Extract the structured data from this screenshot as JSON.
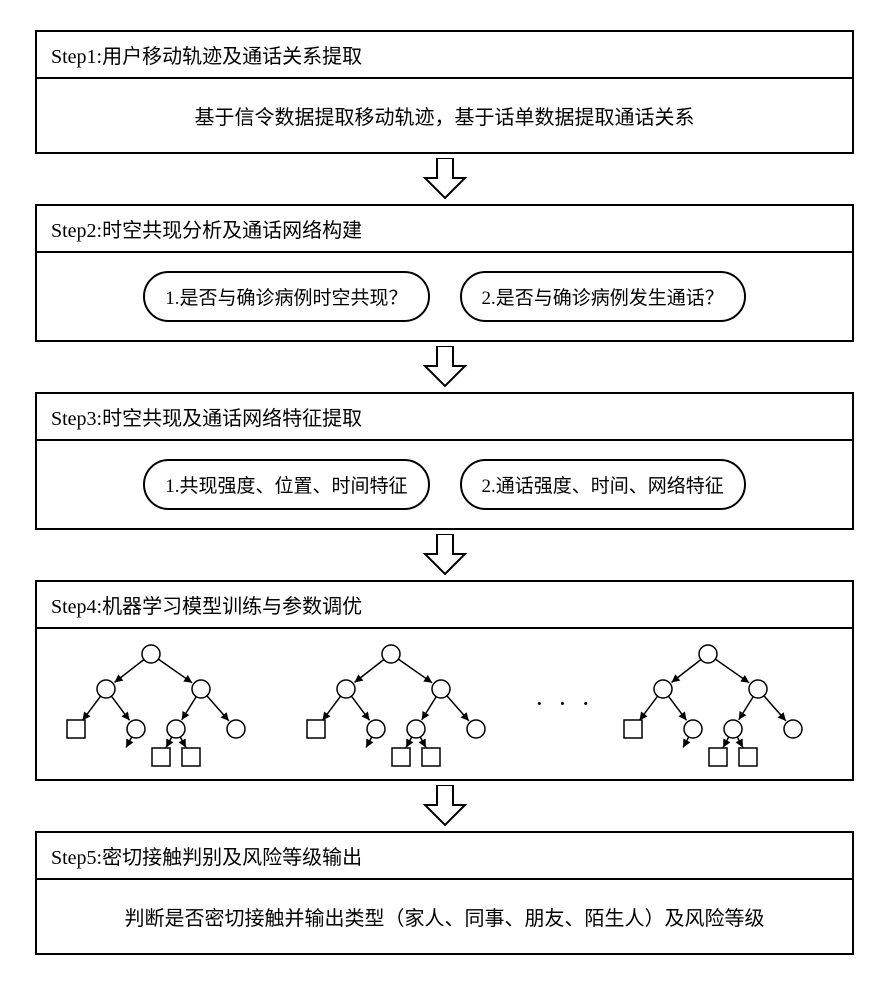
{
  "arrow": {
    "stroke": "#000000",
    "fill": "#ffffff",
    "stroke_width": 2
  },
  "tree": {
    "stroke": "#000000",
    "stroke_width": 1.5,
    "node_radius": 9,
    "leaf_size": 18,
    "fill": "#ffffff"
  },
  "steps": [
    {
      "title": "Step1:用户移动轨迹及通话关系提取",
      "content_text": "基于信令数据提取移动轨迹，基于话单数据提取通话关系"
    },
    {
      "title": "Step2:时空共现分析及通话网络构建",
      "pills": [
        "1.是否与确诊病例时空共现？",
        "2.是否与确诊病例发生通话？"
      ]
    },
    {
      "title": "Step3:时空共现及通话网络特征提取",
      "pills": [
        "1.共现强度、位置、时间特征",
        "2.通话强度、时间、网络特征"
      ]
    },
    {
      "title": "Step4:机器学习模型训练与参数调优",
      "trees": true,
      "ellipsis": "· · ·"
    },
    {
      "title": "Step5:密切接触判别及风险等级输出",
      "content_text": "判断是否密切接触并输出类型（家人、同事、朋友、陌生人）及风险等级"
    }
  ]
}
